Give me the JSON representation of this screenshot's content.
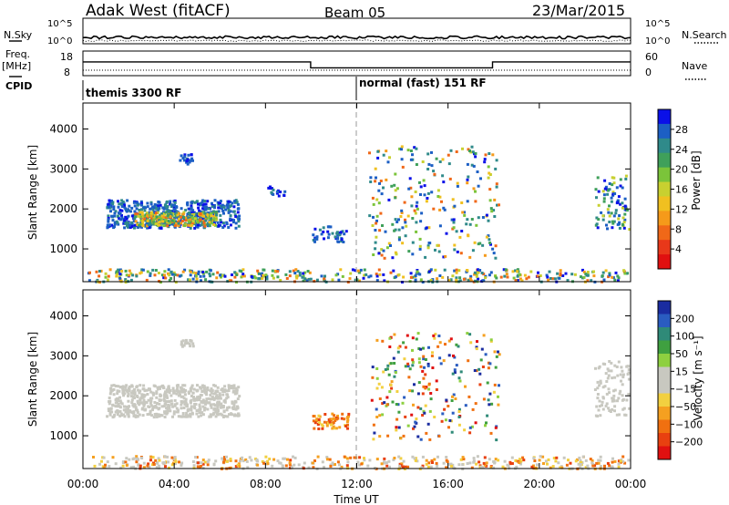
{
  "header": {
    "station": "Adak West (fitACF)",
    "beam": "Beam 05",
    "date": "23/Mar/2015"
  },
  "strip_labels": {
    "nsky": "N.Sky",
    "nsearch": "N.Search",
    "freq_top": "Freq.",
    "freq_unit": "[MHz]",
    "cpid": "CPID",
    "nave": "Nave"
  },
  "program_labels": {
    "first": "themis 3300 RF",
    "second": "normal (fast) 151 RF"
  },
  "chart_data": [
    {
      "type": "line",
      "name": "noise",
      "xlabel": "",
      "xlim": [
        0,
        24
      ],
      "left_ticks": [
        "10^5",
        "10^0"
      ],
      "right_ticks": [
        "10^5",
        "10^0"
      ],
      "series": [
        {
          "style": "solid",
          "approx_level": 0.25
        },
        {
          "style": "dotted",
          "approx_level": 0.12
        }
      ]
    },
    {
      "type": "line",
      "name": "frequency",
      "xlim": [
        0,
        24
      ],
      "left_ticks": [
        "18",
        "8"
      ],
      "right_ticks": [
        "60",
        "0"
      ],
      "series": [
        {
          "style": "solid",
          "segments": [
            {
              "x0": 0,
              "x1": 9.98,
              "y": 13.6
            },
            {
              "x0": 9.98,
              "x1": 17.95,
              "y": 11.2
            },
            {
              "x0": 17.95,
              "x1": 24,
              "y": 13.6
            }
          ]
        },
        {
          "style": "dotted",
          "approx_level": 0.22
        }
      ],
      "program_change_hour": 12
    },
    {
      "type": "heatmap",
      "name": "power",
      "ylabel": "Slant Range [km]",
      "yticks": [
        1000,
        2000,
        3000,
        4000
      ],
      "ylim": [
        180,
        4650
      ],
      "xlim": [
        0,
        24
      ],
      "colorbar_label": "Power [dB]",
      "colorbar_ticks": [
        "28",
        "24",
        "20",
        "16",
        "12",
        "8",
        "4"
      ],
      "colors": [
        "#0a10e8",
        "#1c5fc4",
        "#2f8a8a",
        "#3fa05a",
        "#7bc43a",
        "#c8d030",
        "#f0c020",
        "#f59a1a",
        "#f06818",
        "#e8381a",
        "#e01010"
      ]
    },
    {
      "type": "heatmap",
      "name": "velocity",
      "ylabel": "Slant Range [km]",
      "yticks": [
        1000,
        2000,
        3000,
        4000
      ],
      "ylim": [
        180,
        4650
      ],
      "xlim": [
        0,
        24
      ],
      "xticks": [
        "00:00",
        "04:00",
        "08:00",
        "12:00",
        "16:00",
        "20:00",
        "00:00"
      ],
      "xlabel": "Time UT",
      "colorbar_label": "Velocity [m s⁻¹]",
      "colorbar_ticks": [
        "200",
        "100",
        "50",
        "15",
        "−15",
        "−50",
        "−100",
        "−200"
      ],
      "colors": [
        "#1a2ca0",
        "#2a5cc0",
        "#2f8a78",
        "#3fa040",
        "#8ed040",
        "#c8c8c0",
        "#c8c8c0",
        "#f2d040",
        "#f5a020",
        "#f07010",
        "#e84010",
        "#e01010"
      ]
    }
  ]
}
